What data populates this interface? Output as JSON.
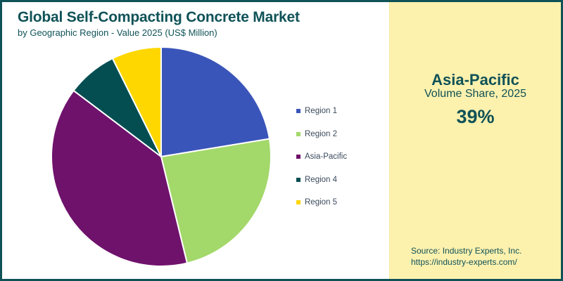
{
  "header": {
    "title": "Global Self-Compacting Concrete Market",
    "subtitle": "by Geographic Region - Value 2025 (US$ Million)"
  },
  "colors": {
    "brand": "#0f5257",
    "panel_bg": "#fdf1ae",
    "legend_text": "#3a4a5c"
  },
  "chart_data": {
    "type": "pie",
    "title": "Global Self-Compacting Concrete Market",
    "subtitle": "by Geographic Region - Value 2025 (US$ Million)",
    "categories": [
      "Region 1",
      "Region 2",
      "Asia-Pacific",
      "Region 4",
      "Region 5"
    ],
    "values": [
      22.4,
      23.8,
      39.1,
      7.4,
      7.3
    ],
    "colors": [
      "#3a55b9",
      "#a3d86a",
      "#6f126c",
      "#044e52",
      "#fed700"
    ],
    "start_angle_deg": 0,
    "direction": "clockwise",
    "legend_position": "right"
  },
  "legend": {
    "items": [
      {
        "label": "Region 1",
        "color": "#3a55b9"
      },
      {
        "label": "Region 2",
        "color": "#a3d86a"
      },
      {
        "label": "Asia-Pacific",
        "color": "#6f126c"
      },
      {
        "label": "Region 4",
        "color": "#044e52"
      },
      {
        "label": "Region 5",
        "color": "#fed700"
      }
    ]
  },
  "highlight_panel": {
    "region": "Asia-Pacific",
    "metric": "Volume Share, 2025",
    "value": "39%"
  },
  "source": {
    "line1": "Source: Industry Experts, Inc.",
    "line2": "https://industry-experts.com/"
  }
}
